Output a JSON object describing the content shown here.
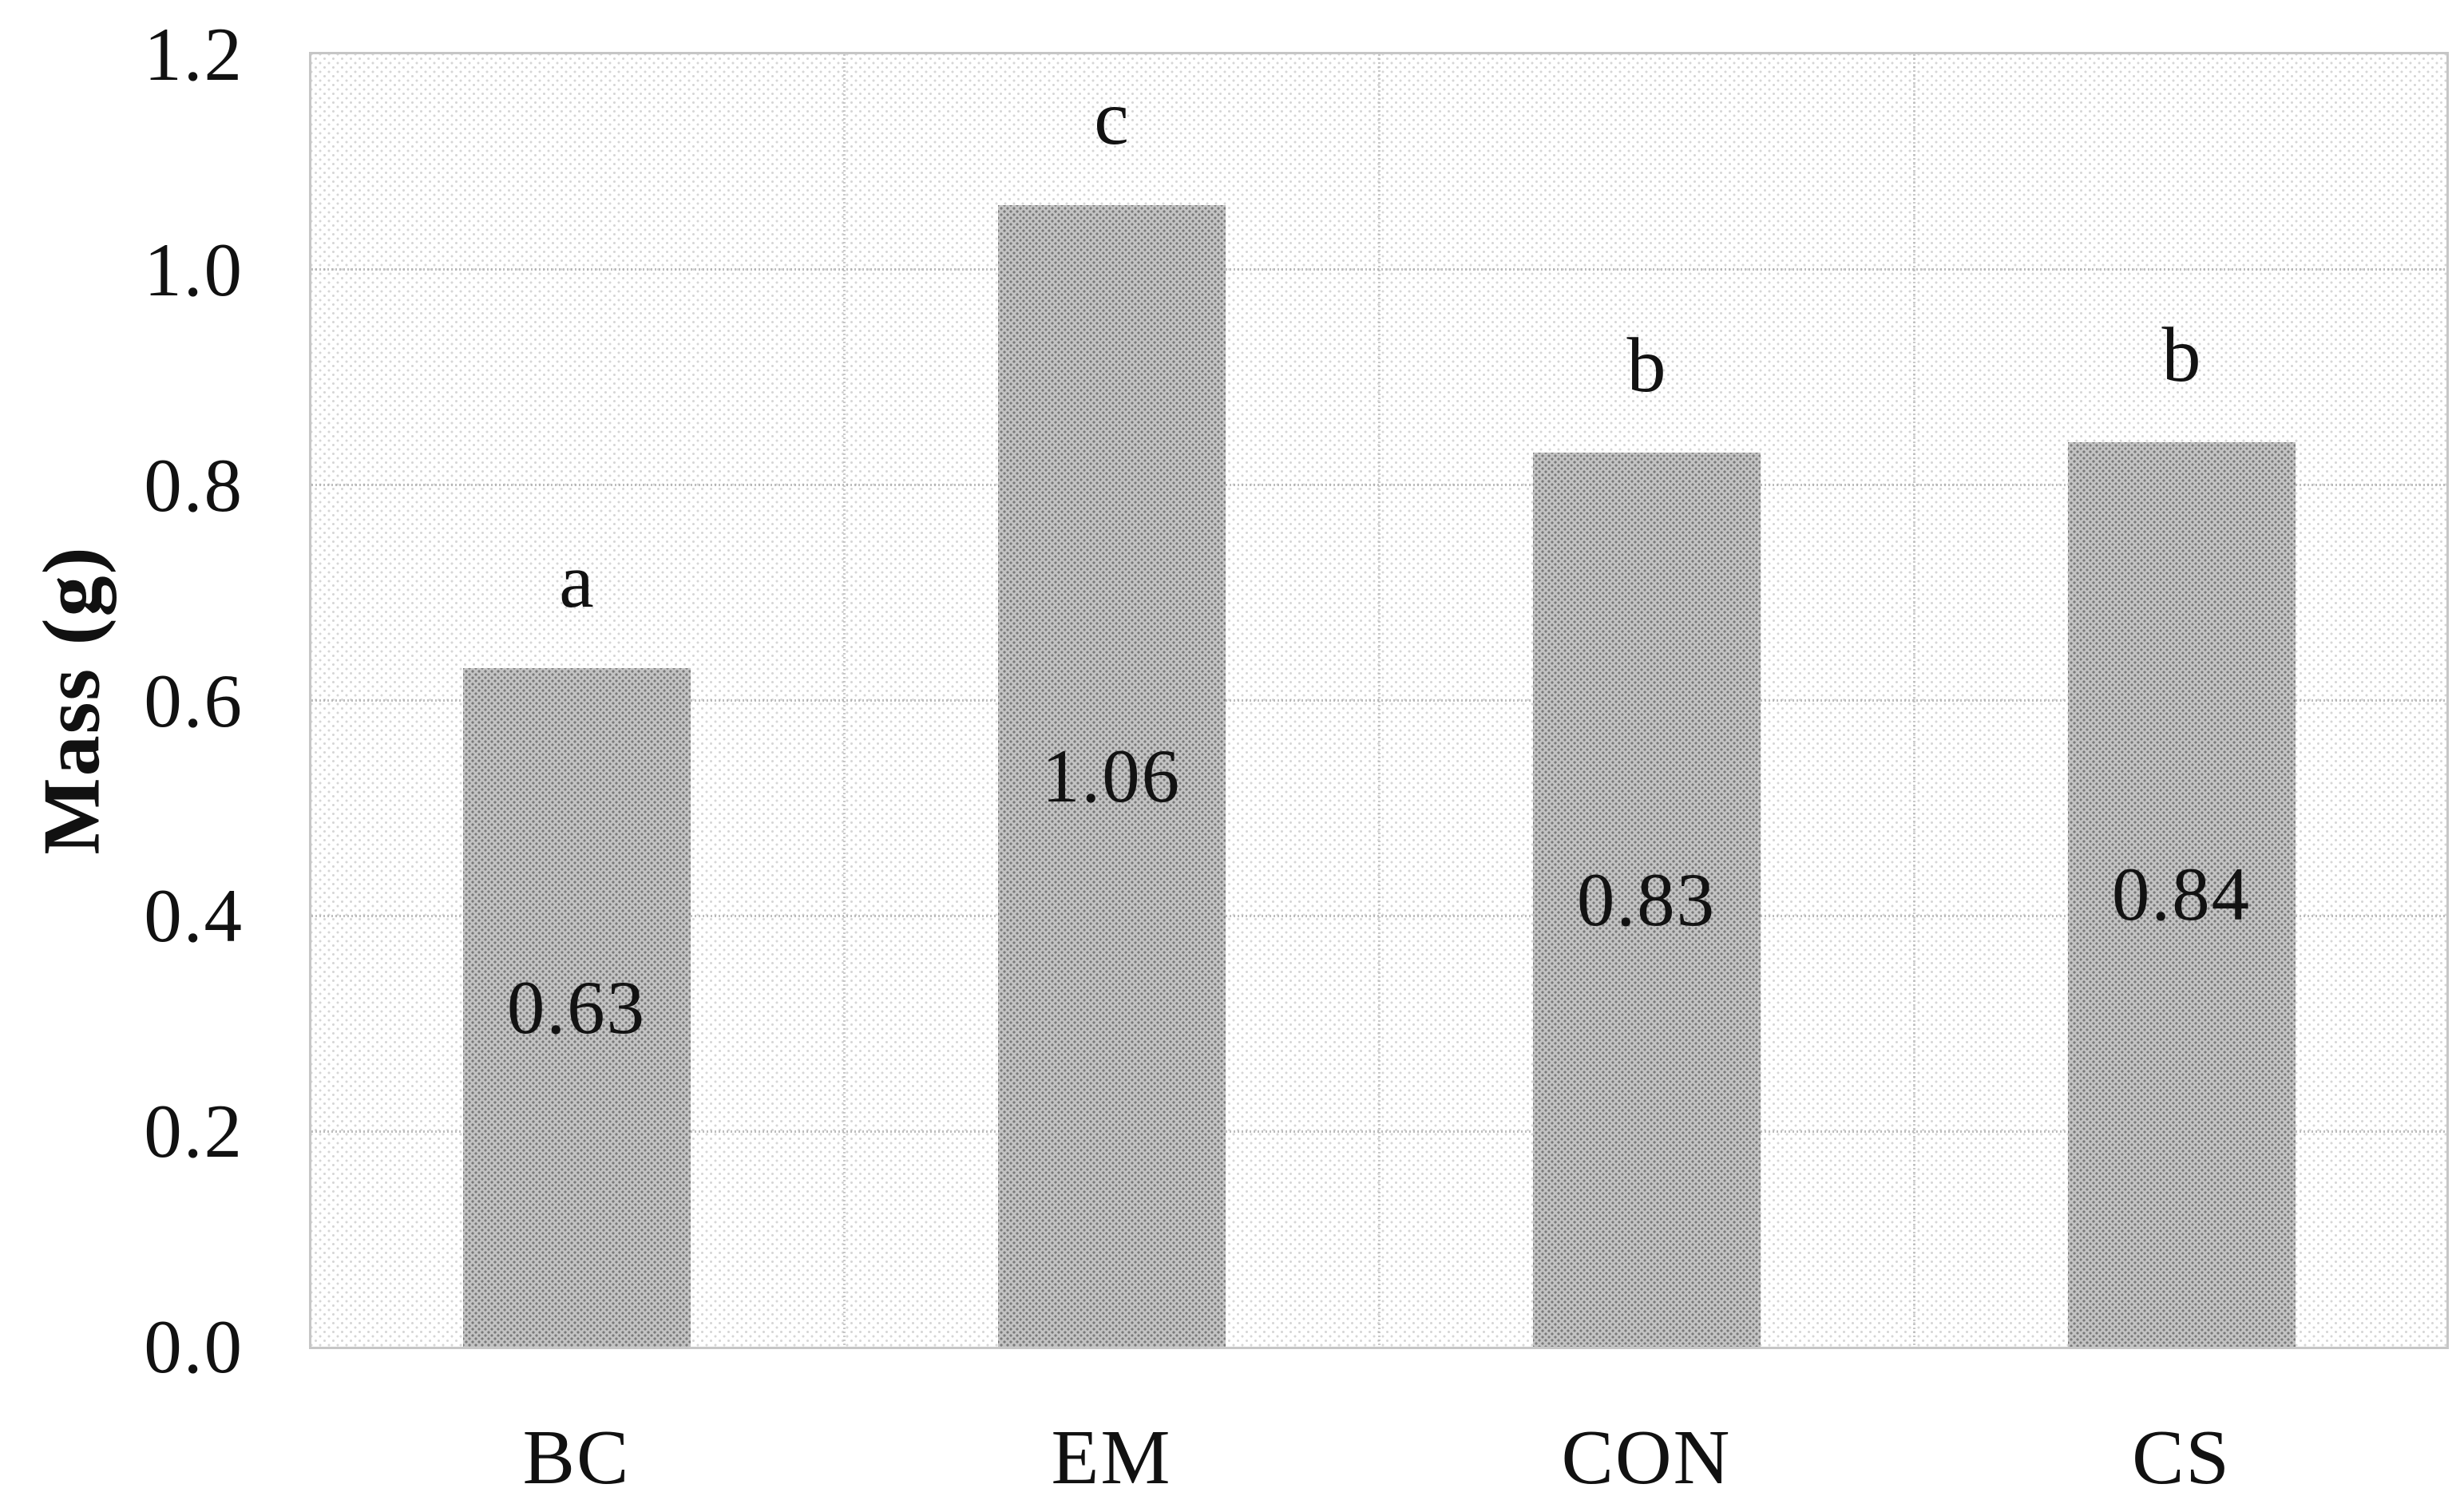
{
  "chart_data": {
    "type": "bar",
    "title": "",
    "xlabel": "",
    "ylabel": "Mass (g)",
    "categories": [
      "BC",
      "EM",
      "CON",
      "CS"
    ],
    "values": [
      0.63,
      1.06,
      0.83,
      0.84
    ],
    "bar_value_labels": [
      "0.63",
      "1.06",
      "0.83",
      "0.84"
    ],
    "significance_letters": [
      "a",
      "c",
      "b",
      "b"
    ],
    "yticks": [
      {
        "value": 0.0,
        "label": "0.0"
      },
      {
        "value": 0.2,
        "label": "0.2"
      },
      {
        "value": 0.4,
        "label": "0.4"
      },
      {
        "value": 0.6,
        "label": "0.6"
      },
      {
        "value": 0.8,
        "label": "0.8"
      },
      {
        "value": 1.0,
        "label": "1.0"
      },
      {
        "value": 1.2,
        "label": "1.2"
      }
    ],
    "ylim": [
      0.0,
      1.2
    ],
    "grid": "horizontal-and-category-boundaries",
    "legend_position": "none",
    "colors": {
      "bar_fill": "#ababab",
      "plot_background": "#f1f1f1",
      "gridline": "#d5d5d5",
      "plot_border": "#c6c6c6",
      "text": "#111111"
    }
  }
}
